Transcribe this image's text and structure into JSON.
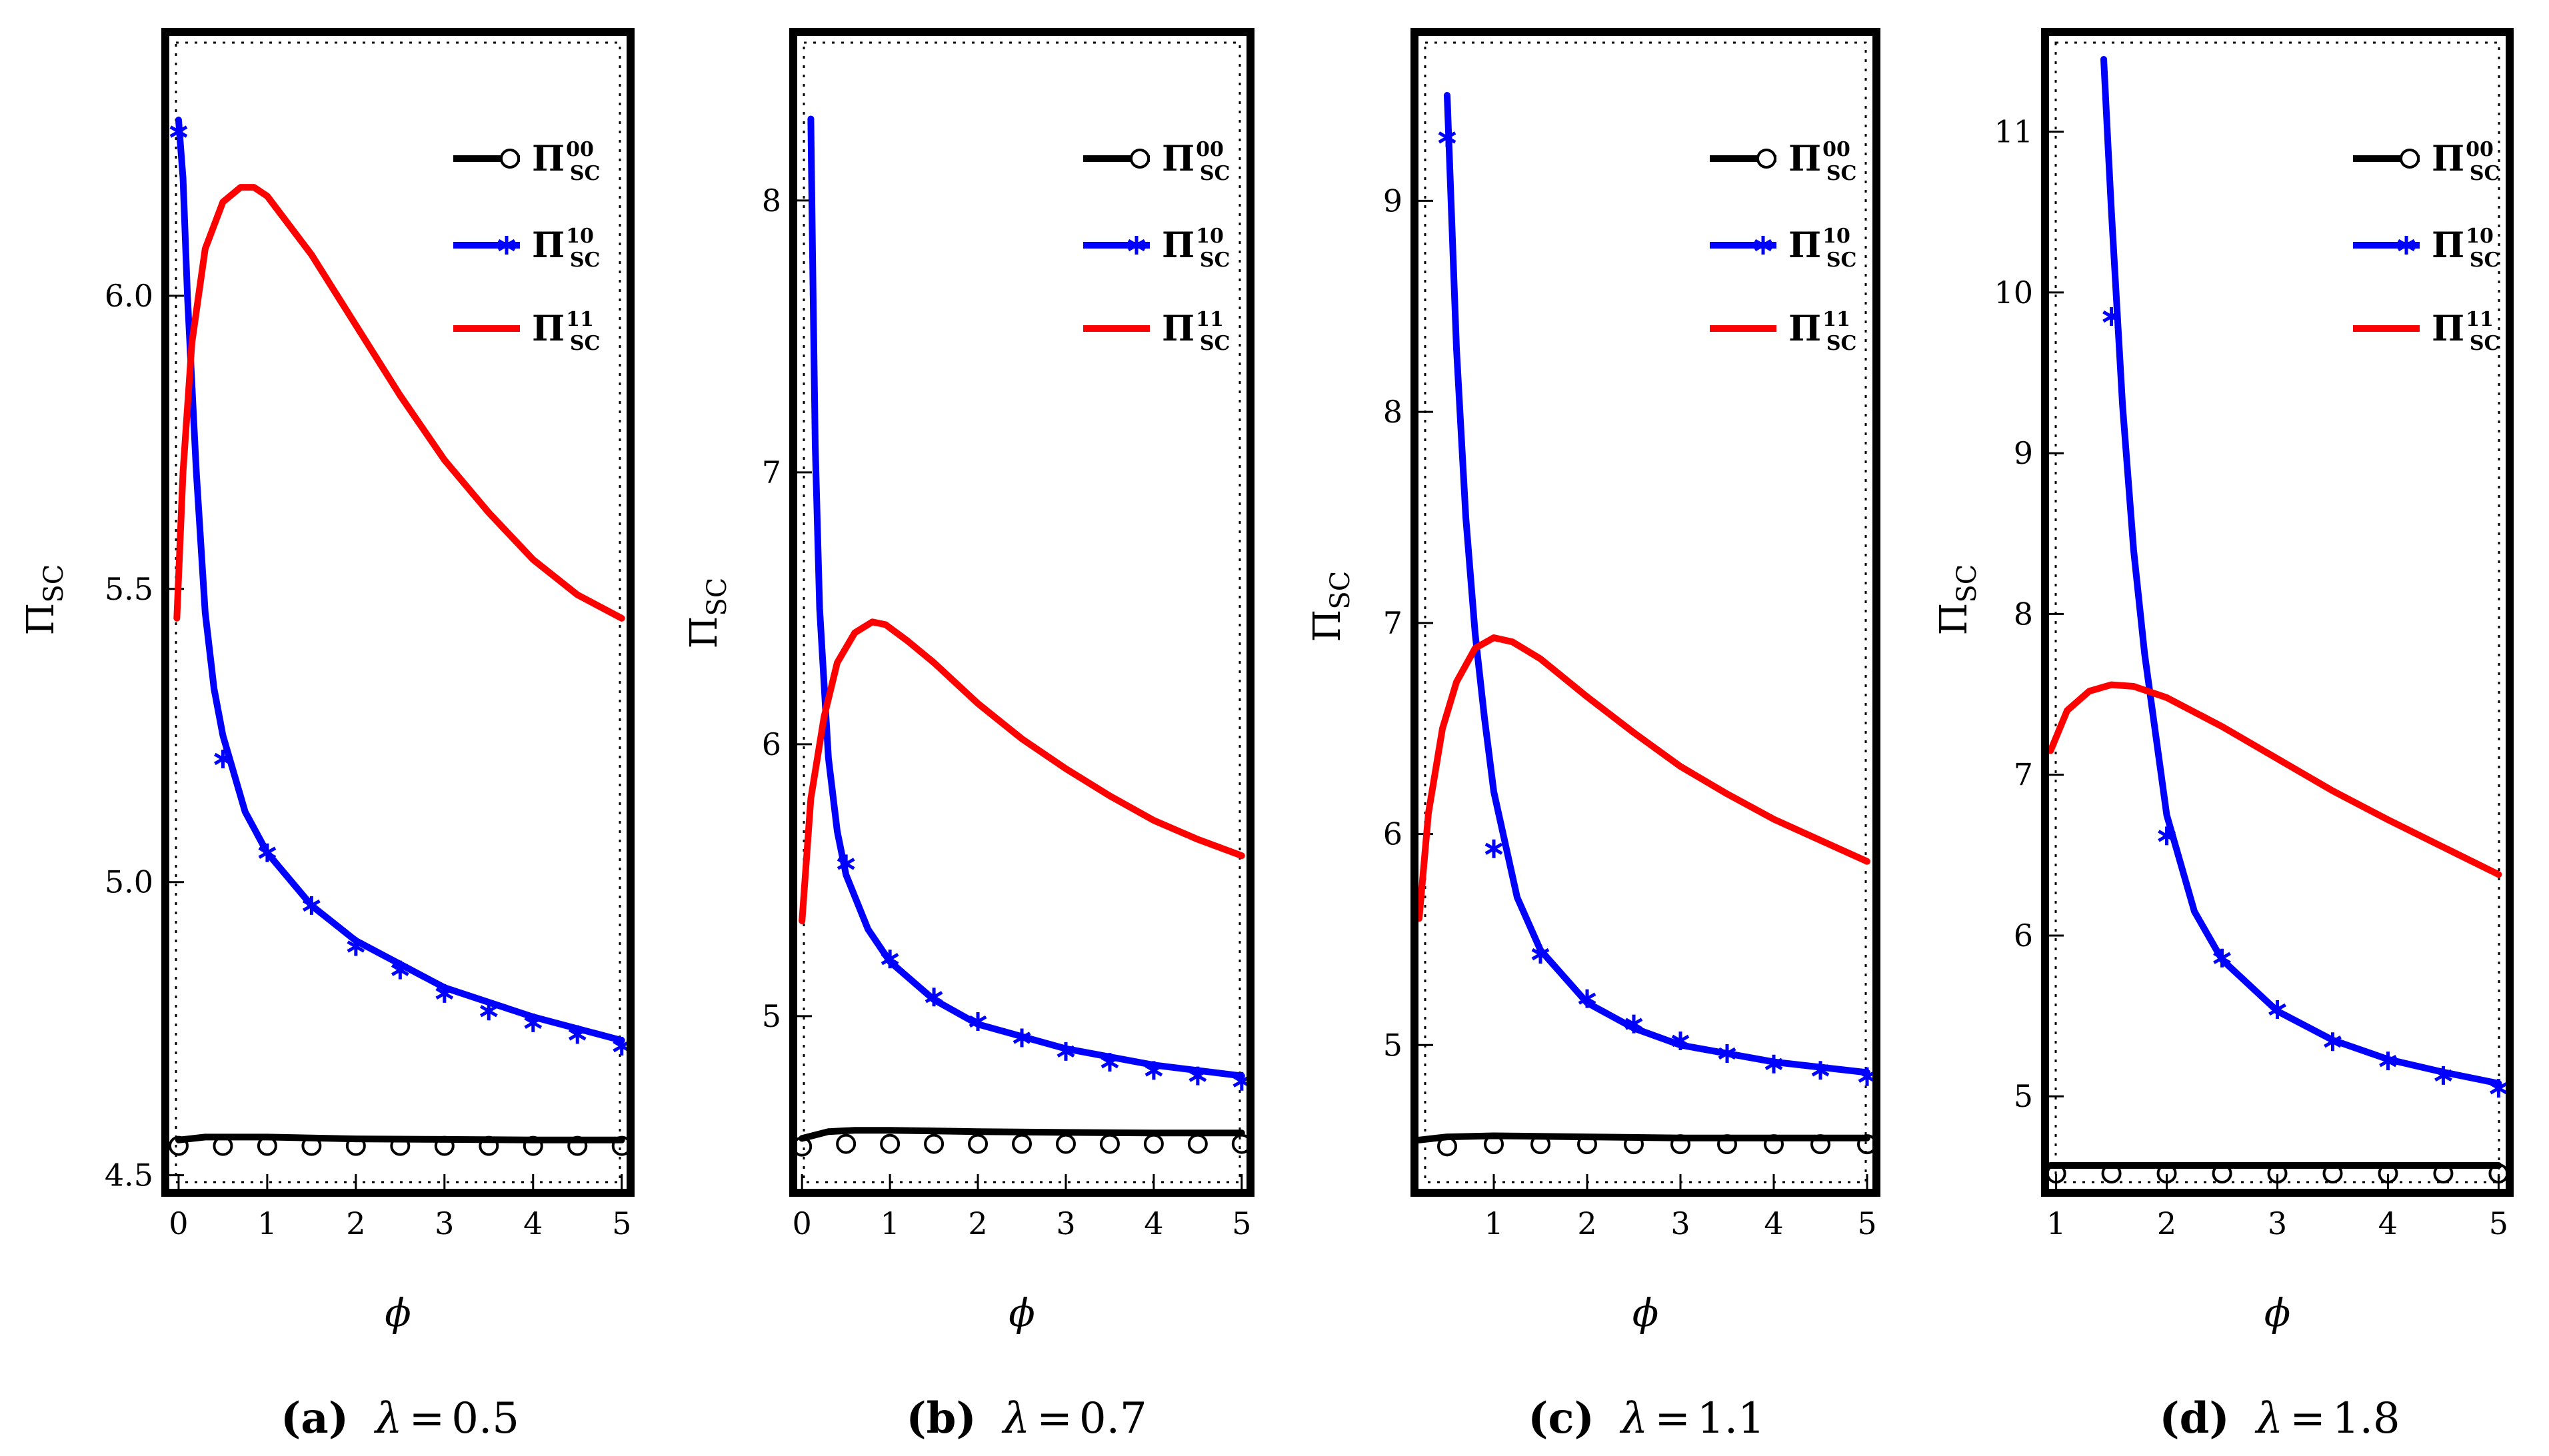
{
  "chart_data": [
    {
      "type": "line",
      "panel_label": "(a)",
      "caption": "λ = 0.5",
      "lambda_symbol": "λ",
      "lambda_value": "0.5",
      "xlabel": "ϕ",
      "ylabel_main": "Π",
      "ylabel_sub": "SC",
      "xlim": [
        -0.15,
        5.1
      ],
      "ylim": [
        4.47,
        6.45
      ],
      "x_ticks": [
        "0",
        "1",
        "2",
        "3",
        "4",
        "5"
      ],
      "x_tick_values": [
        0,
        1,
        2,
        3,
        4,
        5
      ],
      "y_ticks": [
        "4.5",
        "5.0",
        "5.5",
        "6.0"
      ],
      "y_tick_values": [
        4.5,
        5.0,
        5.5,
        6.0
      ],
      "legend": [
        {
          "name": "Π",
          "sup": "00",
          "sub": "SC",
          "color": "#000000",
          "marker": "circle"
        },
        {
          "name": "Π",
          "sup": "10",
          "sub": "SC",
          "color": "#0000ff",
          "marker": "star"
        },
        {
          "name": "Π",
          "sup": "11",
          "sub": "SC",
          "color": "#ff0000",
          "marker": "none"
        }
      ],
      "series": [
        {
          "name": "Π_SC^00 (line)",
          "color": "#000000",
          "x": [
            0,
            0.3,
            0.6,
            1,
            2,
            3,
            4,
            5
          ],
          "y": [
            4.56,
            4.565,
            4.565,
            4.565,
            4.562,
            4.561,
            4.56,
            4.56
          ]
        },
        {
          "name": "Π_SC^00 (markers)",
          "color": "#000000",
          "marker": "circle",
          "x": [
            0,
            0.5,
            1,
            1.5,
            2,
            2.5,
            3,
            3.5,
            4,
            4.5,
            5
          ],
          "y": [
            4.55,
            4.55,
            4.55,
            4.55,
            4.55,
            4.55,
            4.55,
            4.55,
            4.55,
            4.55,
            4.55
          ]
        },
        {
          "name": "Π_SC^10 (line)",
          "color": "#0000ff",
          "x": [
            0,
            0.05,
            0.1,
            0.2,
            0.3,
            0.4,
            0.5,
            0.75,
            1,
            1.5,
            2,
            3,
            4,
            5
          ],
          "y": [
            6.3,
            6.2,
            6.0,
            5.7,
            5.46,
            5.33,
            5.25,
            5.12,
            5.05,
            4.96,
            4.9,
            4.82,
            4.77,
            4.73
          ]
        },
        {
          "name": "Π_SC^10 (markers)",
          "color": "#0000ff",
          "marker": "star",
          "x": [
            0,
            0.5,
            1,
            1.5,
            2,
            2.5,
            3,
            3.5,
            4,
            4.5,
            5
          ],
          "y": [
            6.28,
            5.21,
            5.05,
            4.96,
            4.89,
            4.85,
            4.81,
            4.78,
            4.76,
            4.74,
            4.72
          ]
        },
        {
          "name": "Π_SC^11",
          "color": "#ff0000",
          "x": [
            -0.02,
            0.05,
            0.15,
            0.3,
            0.5,
            0.7,
            0.85,
            1,
            1.5,
            2,
            2.5,
            3,
            3.5,
            4,
            4.5,
            5
          ],
          "y": [
            5.45,
            5.7,
            5.92,
            6.08,
            6.16,
            6.185,
            6.185,
            6.17,
            6.07,
            5.95,
            5.83,
            5.72,
            5.63,
            5.55,
            5.49,
            5.45
          ]
        }
      ]
    },
    {
      "type": "line",
      "panel_label": "(b)",
      "caption": "λ = 0.7",
      "lambda_symbol": "λ",
      "lambda_value": "0.7",
      "xlabel": "ϕ",
      "ylabel_main": "Π",
      "ylabel_sub": "SC",
      "xlim": [
        -0.1,
        5.1
      ],
      "ylim": [
        4.35,
        8.62
      ],
      "x_ticks": [
        "0",
        "1",
        "2",
        "3",
        "4",
        "5"
      ],
      "x_tick_values": [
        0,
        1,
        2,
        3,
        4,
        5
      ],
      "y_ticks": [
        "5",
        "6",
        "7",
        "8"
      ],
      "y_tick_values": [
        5,
        6,
        7,
        8
      ],
      "legend": [
        {
          "name": "Π",
          "sup": "00",
          "sub": "SC",
          "color": "#000000",
          "marker": "circle"
        },
        {
          "name": "Π",
          "sup": "10",
          "sub": "SC",
          "color": "#0000ff",
          "marker": "star"
        },
        {
          "name": "Π",
          "sup": "11",
          "sub": "SC",
          "color": "#ff0000",
          "marker": "none"
        }
      ],
      "series": [
        {
          "name": "Π_SC^00 (line)",
          "color": "#000000",
          "x": [
            0,
            0.3,
            0.6,
            1,
            2,
            3,
            4,
            5
          ],
          "y": [
            4.55,
            4.575,
            4.58,
            4.58,
            4.575,
            4.572,
            4.57,
            4.57
          ]
        },
        {
          "name": "Π_SC^00 (markers)",
          "color": "#000000",
          "marker": "circle",
          "x": [
            0,
            0.5,
            1,
            1.5,
            2,
            2.5,
            3,
            3.5,
            4,
            4.5,
            5
          ],
          "y": [
            4.52,
            4.53,
            4.53,
            4.53,
            4.53,
            4.53,
            4.53,
            4.53,
            4.53,
            4.53,
            4.53
          ]
        },
        {
          "name": "Π_SC^10 (line)",
          "color": "#0000ff",
          "x": [
            0.1,
            0.12,
            0.15,
            0.2,
            0.3,
            0.4,
            0.5,
            0.75,
            1,
            1.5,
            2,
            3,
            4,
            5
          ],
          "y": [
            8.3,
            7.8,
            7.1,
            6.5,
            5.95,
            5.68,
            5.52,
            5.32,
            5.2,
            5.06,
            4.97,
            4.88,
            4.82,
            4.78
          ]
        },
        {
          "name": "Π_SC^10 (markers)",
          "color": "#0000ff",
          "marker": "star",
          "x": [
            0.5,
            1,
            1.5,
            2,
            2.5,
            3,
            3.5,
            4,
            4.5,
            5
          ],
          "y": [
            5.56,
            5.21,
            5.07,
            4.98,
            4.92,
            4.87,
            4.83,
            4.8,
            4.78,
            4.76
          ]
        },
        {
          "name": "Π_SC^11",
          "color": "#ff0000",
          "x": [
            0,
            0.1,
            0.25,
            0.4,
            0.6,
            0.8,
            0.95,
            1.2,
            1.5,
            2,
            2.5,
            3,
            3.5,
            4,
            4.5,
            5
          ],
          "y": [
            5.35,
            5.8,
            6.1,
            6.3,
            6.41,
            6.45,
            6.44,
            6.38,
            6.3,
            6.15,
            6.02,
            5.91,
            5.81,
            5.72,
            5.65,
            5.59
          ]
        }
      ]
    },
    {
      "type": "line",
      "panel_label": "(c)",
      "caption": "λ = 1.1",
      "lambda_symbol": "λ",
      "lambda_value": "1.1",
      "xlabel": "ϕ",
      "ylabel_main": "Π",
      "ylabel_sub": "SC",
      "xlim": [
        0.15,
        5.1
      ],
      "ylim": [
        4.3,
        9.8
      ],
      "x_ticks": [
        "1",
        "2",
        "3",
        "4",
        "5"
      ],
      "x_tick_values": [
        1,
        2,
        3,
        4,
        5
      ],
      "y_ticks": [
        "5",
        "6",
        "7",
        "8",
        "9"
      ],
      "y_tick_values": [
        5,
        6,
        7,
        8,
        9
      ],
      "legend": [
        {
          "name": "Π",
          "sup": "00",
          "sub": "SC",
          "color": "#000000",
          "marker": "circle"
        },
        {
          "name": "Π",
          "sup": "10",
          "sub": "SC",
          "color": "#0000ff",
          "marker": "star"
        },
        {
          "name": "Π",
          "sup": "11",
          "sub": "SC",
          "color": "#ff0000",
          "marker": "none"
        }
      ],
      "series": [
        {
          "name": "Π_SC^00 (line)",
          "color": "#000000",
          "x": [
            0.2,
            0.5,
            1,
            2,
            3,
            4,
            5
          ],
          "y": [
            4.55,
            4.565,
            4.57,
            4.565,
            4.56,
            4.56,
            4.56
          ]
        },
        {
          "name": "Π_SC^00 (markers)",
          "color": "#000000",
          "marker": "circle",
          "x": [
            0.5,
            1,
            1.5,
            2,
            2.5,
            3,
            3.5,
            4,
            4.5,
            5
          ],
          "y": [
            4.52,
            4.53,
            4.53,
            4.53,
            4.53,
            4.53,
            4.53,
            4.53,
            4.53,
            4.53
          ]
        },
        {
          "name": "Π_SC^10 (line)",
          "color": "#0000ff",
          "x": [
            0.5,
            0.55,
            0.6,
            0.7,
            0.8,
            0.9,
            1,
            1.25,
            1.5,
            2,
            2.5,
            3,
            4,
            5
          ],
          "y": [
            9.5,
            8.9,
            8.3,
            7.5,
            6.95,
            6.55,
            6.2,
            5.7,
            5.45,
            5.2,
            5.08,
            5.0,
            4.92,
            4.87
          ]
        },
        {
          "name": "Π_SC^10 (markers)",
          "color": "#0000ff",
          "marker": "star",
          "x": [
            0.5,
            1,
            1.5,
            2,
            2.5,
            3,
            3.5,
            4,
            4.5,
            5
          ],
          "y": [
            9.3,
            5.93,
            5.43,
            5.22,
            5.1,
            5.02,
            4.96,
            4.91,
            4.88,
            4.85
          ]
        },
        {
          "name": "Π_SC^11",
          "color": "#ff0000",
          "x": [
            0.2,
            0.3,
            0.45,
            0.6,
            0.8,
            1,
            1.2,
            1.5,
            2,
            2.5,
            3,
            3.5,
            4,
            4.5,
            5
          ],
          "y": [
            5.6,
            6.1,
            6.5,
            6.72,
            6.88,
            6.93,
            6.91,
            6.83,
            6.65,
            6.48,
            6.32,
            6.19,
            6.07,
            5.97,
            5.87
          ]
        }
      ]
    },
    {
      "type": "line",
      "panel_label": "(d)",
      "caption": "λ = 1.8",
      "lambda_symbol": "λ",
      "lambda_value": "1.8",
      "xlabel": "ϕ",
      "ylabel_main": "Π",
      "ylabel_sub": "SC",
      "xlim": [
        0.9,
        5.1
      ],
      "ylim": [
        4.4,
        11.62
      ],
      "x_ticks": [
        "1",
        "2",
        "3",
        "4",
        "5"
      ],
      "x_tick_values": [
        1,
        2,
        3,
        4,
        5
      ],
      "y_ticks": [
        "5",
        "6",
        "7",
        "8",
        "9",
        "10",
        "11"
      ],
      "y_tick_values": [
        5,
        6,
        7,
        8,
        9,
        10,
        11
      ],
      "legend": [
        {
          "name": "Π",
          "sup": "00",
          "sub": "SC",
          "color": "#000000",
          "marker": "circle"
        },
        {
          "name": "Π",
          "sup": "10",
          "sub": "SC",
          "color": "#0000ff",
          "marker": "star"
        },
        {
          "name": "Π",
          "sup": "11",
          "sub": "SC",
          "color": "#ff0000",
          "marker": "none"
        }
      ],
      "series": [
        {
          "name": "Π_SC^00 (line)",
          "color": "#000000",
          "x": [
            0.95,
            2,
            3,
            4,
            5
          ],
          "y": [
            4.57,
            4.57,
            4.57,
            4.57,
            4.57
          ]
        },
        {
          "name": "Π_SC^00 (markers)",
          "color": "#000000",
          "marker": "circle",
          "x": [
            1,
            1.5,
            2,
            2.5,
            3,
            3.5,
            4,
            4.5,
            5
          ],
          "y": [
            4.52,
            4.52,
            4.52,
            4.52,
            4.52,
            4.52,
            4.52,
            4.52,
            4.52
          ]
        },
        {
          "name": "Π_SC^10 (line)",
          "color": "#0000ff",
          "x": [
            1.43,
            1.47,
            1.5,
            1.55,
            1.6,
            1.7,
            1.8,
            2,
            2.25,
            2.5,
            3,
            3.5,
            4,
            4.5,
            5
          ],
          "y": [
            11.45,
            10.9,
            10.5,
            9.9,
            9.3,
            8.4,
            7.75,
            6.75,
            6.15,
            5.85,
            5.53,
            5.35,
            5.23,
            5.15,
            5.08
          ]
        },
        {
          "name": "Π_SC^10 (markers)",
          "color": "#0000ff",
          "marker": "star",
          "x": [
            1.5,
            2,
            2.5,
            3,
            3.5,
            4,
            4.5,
            5
          ],
          "y": [
            9.85,
            6.62,
            5.86,
            5.54,
            5.34,
            5.22,
            5.13,
            5.05
          ]
        },
        {
          "name": "Π_SC^11",
          "color": "#ff0000",
          "x": [
            0.95,
            1.1,
            1.3,
            1.5,
            1.7,
            2,
            2.5,
            3,
            3.5,
            4,
            4.5,
            5
          ],
          "y": [
            7.15,
            7.4,
            7.52,
            7.56,
            7.55,
            7.48,
            7.3,
            7.1,
            6.9,
            6.72,
            6.55,
            6.38
          ]
        }
      ]
    }
  ]
}
